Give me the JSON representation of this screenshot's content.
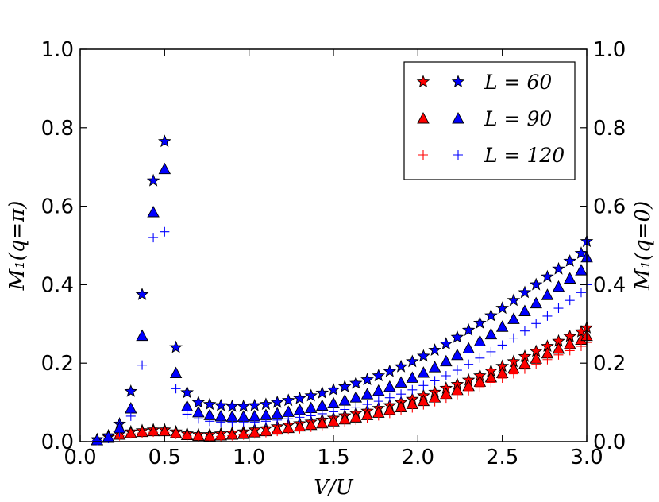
{
  "chart_data": {
    "type": "scatter",
    "xlabel": "V/U",
    "ylabel_left": "M₁(q=π)",
    "ylabel_right": "M₁(q=0)",
    "xlim": [
      0.0,
      3.0
    ],
    "ylim": [
      0.0,
      1.0
    ],
    "x_ticks": [
      "0.0",
      "0.5",
      "1.0",
      "1.5",
      "2.0",
      "2.5",
      "3.0"
    ],
    "y_ticks": [
      "0.0",
      "0.2",
      "0.4",
      "0.6",
      "0.8",
      "1.0"
    ],
    "colors": {
      "red": "#ff0000",
      "blue": "#0000ff"
    },
    "legend": {
      "placement": "top-right",
      "entries": [
        "L = 60",
        "L = 90",
        "L = 120"
      ]
    },
    "x": [
      0.1,
      0.167,
      0.233,
      0.3,
      0.367,
      0.433,
      0.5,
      0.567,
      0.633,
      0.7,
      0.767,
      0.833,
      0.9,
      0.967,
      1.033,
      1.1,
      1.167,
      1.233,
      1.3,
      1.367,
      1.433,
      1.5,
      1.567,
      1.633,
      1.7,
      1.767,
      1.833,
      1.9,
      1.967,
      2.033,
      2.1,
      2.167,
      2.233,
      2.3,
      2.367,
      2.433,
      2.5,
      2.567,
      2.633,
      2.7,
      2.767,
      2.833,
      2.9,
      2.967,
      3.0
    ],
    "series": [
      {
        "name": "L=60 (q=π)",
        "color": "red",
        "marker": "star",
        "axis": "left",
        "values": [
          0.005,
          0.012,
          0.02,
          0.025,
          0.028,
          0.03,
          0.03,
          0.025,
          0.02,
          0.018,
          0.018,
          0.02,
          0.022,
          0.025,
          0.03,
          0.033,
          0.038,
          0.042,
          0.046,
          0.05,
          0.055,
          0.06,
          0.066,
          0.072,
          0.078,
          0.085,
          0.092,
          0.1,
          0.108,
          0.117,
          0.126,
          0.136,
          0.146,
          0.157,
          0.168,
          0.18,
          0.192,
          0.204,
          0.217,
          0.23,
          0.243,
          0.256,
          0.268,
          0.28,
          0.29
        ]
      },
      {
        "name": "L=90 (q=π)",
        "color": "red",
        "marker": "triangle",
        "axis": "left",
        "values": [
          0.004,
          0.01,
          0.018,
          0.022,
          0.025,
          0.027,
          0.027,
          0.022,
          0.017,
          0.015,
          0.014,
          0.016,
          0.018,
          0.02,
          0.024,
          0.027,
          0.031,
          0.035,
          0.039,
          0.043,
          0.047,
          0.052,
          0.057,
          0.062,
          0.068,
          0.074,
          0.081,
          0.088,
          0.096,
          0.104,
          0.113,
          0.122,
          0.132,
          0.142,
          0.153,
          0.164,
          0.175,
          0.187,
          0.199,
          0.212,
          0.225,
          0.237,
          0.249,
          0.26,
          0.27
        ]
      },
      {
        "name": "L=120 (q=π)",
        "color": "red",
        "marker": "plus",
        "axis": "left",
        "values": [
          0.003,
          0.008,
          0.015,
          0.02,
          0.022,
          0.024,
          0.024,
          0.019,
          0.014,
          0.012,
          0.012,
          0.013,
          0.015,
          0.017,
          0.02,
          0.023,
          0.026,
          0.03,
          0.033,
          0.037,
          0.041,
          0.045,
          0.05,
          0.055,
          0.06,
          0.066,
          0.072,
          0.079,
          0.086,
          0.094,
          0.102,
          0.111,
          0.12,
          0.13,
          0.14,
          0.151,
          0.162,
          0.173,
          0.185,
          0.197,
          0.209,
          0.221,
          0.232,
          0.243,
          0.253
        ]
      },
      {
        "name": "L=60 (q=0)",
        "color": "blue",
        "marker": "star",
        "axis": "right",
        "values": [
          0.005,
          0.015,
          0.045,
          0.128,
          0.375,
          0.665,
          0.765,
          0.24,
          0.125,
          0.1,
          0.095,
          0.092,
          0.09,
          0.09,
          0.092,
          0.095,
          0.1,
          0.105,
          0.11,
          0.117,
          0.124,
          0.132,
          0.14,
          0.149,
          0.158,
          0.168,
          0.179,
          0.191,
          0.204,
          0.218,
          0.233,
          0.249,
          0.266,
          0.284,
          0.302,
          0.321,
          0.34,
          0.36,
          0.38,
          0.4,
          0.42,
          0.44,
          0.46,
          0.48,
          0.51
        ]
      },
      {
        "name": "L=90 (q=0)",
        "color": "blue",
        "marker": "triangle",
        "axis": "right",
        "values": [
          0.004,
          0.012,
          0.035,
          0.085,
          0.27,
          0.585,
          0.695,
          0.175,
          0.09,
          0.075,
          0.068,
          0.065,
          0.064,
          0.064,
          0.065,
          0.068,
          0.072,
          0.076,
          0.081,
          0.086,
          0.092,
          0.098,
          0.105,
          0.113,
          0.121,
          0.13,
          0.14,
          0.151,
          0.163,
          0.176,
          0.19,
          0.205,
          0.221,
          0.238,
          0.256,
          0.274,
          0.293,
          0.313,
          0.333,
          0.353,
          0.374,
          0.395,
          0.416,
          0.437,
          0.47
        ]
      },
      {
        "name": "L=120 (q=0)",
        "color": "blue",
        "marker": "plus",
        "axis": "right",
        "values": [
          0.003,
          0.008,
          0.025,
          0.065,
          0.195,
          0.52,
          0.535,
          0.135,
          0.07,
          0.058,
          0.052,
          0.05,
          0.049,
          0.049,
          0.05,
          0.052,
          0.055,
          0.058,
          0.062,
          0.066,
          0.071,
          0.076,
          0.082,
          0.088,
          0.095,
          0.103,
          0.112,
          0.121,
          0.132,
          0.143,
          0.155,
          0.168,
          0.182,
          0.197,
          0.213,
          0.229,
          0.246,
          0.264,
          0.282,
          0.301,
          0.32,
          0.34,
          0.36,
          0.38,
          0.4
        ]
      }
    ]
  }
}
